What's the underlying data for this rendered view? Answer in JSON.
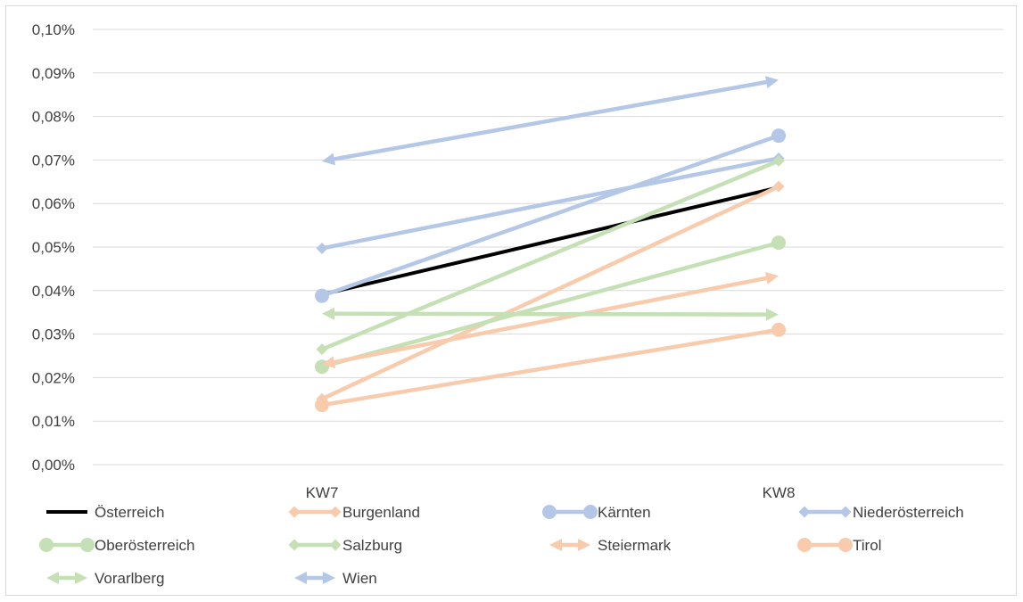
{
  "chart_data": {
    "type": "line",
    "categories": [
      "KW7",
      "KW8"
    ],
    "ylim": [
      0,
      0.1
    ],
    "y_ticks": [
      "0,00%",
      "0,01%",
      "0,02%",
      "0,03%",
      "0,04%",
      "0,05%",
      "0,06%",
      "0,07%",
      "0,08%",
      "0,09%",
      "0,10%"
    ],
    "grid": true,
    "legend_position": "bottom",
    "series": [
      {
        "name": "Österreich",
        "values": [
          0.0391,
          0.0637
        ],
        "color": "#000000",
        "marker": "none"
      },
      {
        "name": "Burgenland",
        "values": [
          0.0151,
          0.0639
        ],
        "color": "#f8cbad",
        "marker": "diamond"
      },
      {
        "name": "Kärnten",
        "values": [
          0.0388,
          0.0756
        ],
        "color": "#b4c7e7",
        "marker": "circle"
      },
      {
        "name": "Niederösterreich",
        "values": [
          0.0497,
          0.0704
        ],
        "color": "#b4c7e7",
        "marker": "diamond"
      },
      {
        "name": "Oberösterreich",
        "values": [
          0.0225,
          0.051
        ],
        "color": "#c5e0b4",
        "marker": "circle"
      },
      {
        "name": "Salzburg",
        "values": [
          0.0265,
          0.0698
        ],
        "color": "#c5e0b4",
        "marker": "diamond"
      },
      {
        "name": "Steiermark",
        "values": [
          0.023,
          0.0434
        ],
        "color": "#f8cbad",
        "marker": "arrow"
      },
      {
        "name": "Tirol",
        "values": [
          0.0137,
          0.031
        ],
        "color": "#f8cbad",
        "marker": "circle"
      },
      {
        "name": "Vorarlberg",
        "values": [
          0.0347,
          0.0345
        ],
        "color": "#c5e0b4",
        "marker": "arrow"
      },
      {
        "name": "Wien",
        "values": [
          0.0697,
          0.0884
        ],
        "color": "#b4c7e7",
        "marker": "arrow"
      }
    ]
  }
}
